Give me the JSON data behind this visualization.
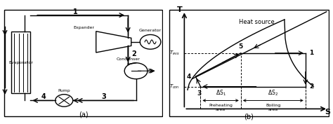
{
  "fig_width": 4.74,
  "fig_height": 1.77,
  "dpi": 100,
  "bg_color": "#ffffff",
  "left": {
    "evaporator_label": "Evaporator",
    "pump_label": "Pump",
    "expander_label": "Expander",
    "generator_label": "Generator",
    "condenser_label": "Condenser",
    "label_a": "(a)",
    "node1": "1",
    "node2": "2",
    "node3": "3",
    "node4": "4"
  },
  "right": {
    "T_label": "T",
    "S_label": "S",
    "heat_source": "Heat source",
    "T_evap_label": "T_{evs}",
    "T_cond_label": "T_{con}",
    "dS1": "$\\Delta$S$_1$",
    "dS2": "$\\Delta$S$_2$",
    "preheat_label": "Preheating\narea",
    "boiling_label": "Boiling\narea",
    "label_b": "(b)",
    "nodes": [
      "1",
      "2",
      "3",
      "4",
      "5"
    ]
  }
}
